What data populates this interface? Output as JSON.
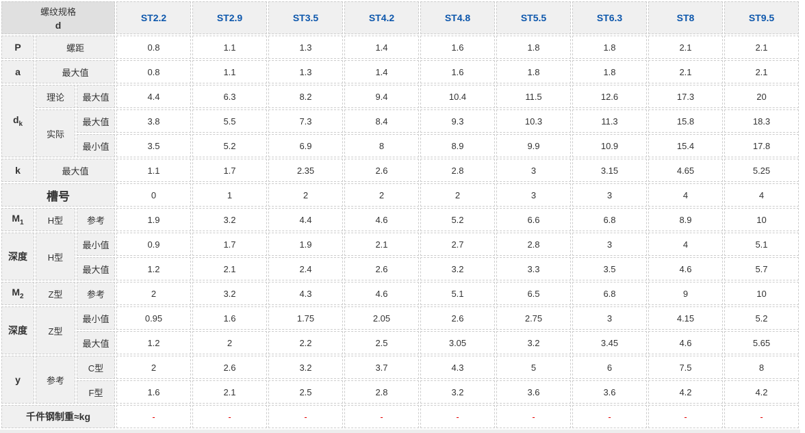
{
  "colors": {
    "header_text_blue": "#0d57ac",
    "dash_red": "#e60000",
    "label_bg": "#f0f0f0",
    "corner_bg": "#e0e0e0"
  },
  "table": {
    "corner": {
      "line1": "螺纹规格",
      "line2": "d"
    },
    "columns": [
      "ST2.2",
      "ST2.9",
      "ST3.5",
      "ST4.2",
      "ST4.8",
      "ST5.5",
      "ST6.3",
      "ST8",
      "ST9.5"
    ],
    "rows": [
      {
        "c1": {
          "base": "P"
        },
        "c2": "螺距",
        "values": [
          "0.8",
          "1.1",
          "1.3",
          "1.4",
          "1.6",
          "1.8",
          "1.8",
          "2.1",
          "2.1"
        ]
      },
      {
        "c1": {
          "base": "a"
        },
        "c2": "最大值",
        "values": [
          "0.8",
          "1.1",
          "1.3",
          "1.4",
          "1.6",
          "1.8",
          "1.8",
          "2.1",
          "2.1"
        ]
      },
      {
        "c1": {
          "base": "d",
          "sub": "k"
        },
        "c2": "理论",
        "c3": "最大值",
        "values": [
          "4.4",
          "6.3",
          "8.2",
          "9.4",
          "10.4",
          "11.5",
          "12.6",
          "17.3",
          "20"
        ]
      },
      {
        "c2": "实际",
        "c3": "最大值",
        "values": [
          "3.8",
          "5.5",
          "7.3",
          "8.4",
          "9.3",
          "10.3",
          "11.3",
          "15.8",
          "18.3"
        ]
      },
      {
        "c3": "最小值",
        "values": [
          "3.5",
          "5.2",
          "6.9",
          "8",
          "8.9",
          "9.9",
          "10.9",
          "15.4",
          "17.8"
        ]
      },
      {
        "c1": {
          "base": "k"
        },
        "c2": "最大值",
        "values": [
          "1.1",
          "1.7",
          "2.35",
          "2.6",
          "2.8",
          "3",
          "3.15",
          "4.65",
          "5.25"
        ]
      },
      {
        "c1": {
          "base": "槽号"
        },
        "values": [
          "0",
          "1",
          "2",
          "2",
          "2",
          "3",
          "3",
          "4",
          "4"
        ]
      },
      {
        "c1": {
          "base": "M",
          "sub": "1"
        },
        "c2": "H型",
        "c3": "参考",
        "values": [
          "1.9",
          "3.2",
          "4.4",
          "4.6",
          "5.2",
          "6.6",
          "6.8",
          "8.9",
          "10"
        ]
      },
      {
        "c1": {
          "base": "深度"
        },
        "c2": "H型",
        "c3": "最小值",
        "values": [
          "0.9",
          "1.7",
          "1.9",
          "2.1",
          "2.7",
          "2.8",
          "3",
          "4",
          "5.1"
        ]
      },
      {
        "c3": "最大值",
        "values": [
          "1.2",
          "2.1",
          "2.4",
          "2.6",
          "3.2",
          "3.3",
          "3.5",
          "4.6",
          "5.7"
        ]
      },
      {
        "c1": {
          "base": "M",
          "sub": "2"
        },
        "c2": "Z型",
        "c3": "参考",
        "values": [
          "2",
          "3.2",
          "4.3",
          "4.6",
          "5.1",
          "6.5",
          "6.8",
          "9",
          "10"
        ]
      },
      {
        "c1": {
          "base": "深度"
        },
        "c2": "Z型",
        "c3": "最小值",
        "values": [
          "0.95",
          "1.6",
          "1.75",
          "2.05",
          "2.6",
          "2.75",
          "3",
          "4.15",
          "5.2"
        ]
      },
      {
        "c3": "最大值",
        "values": [
          "1.2",
          "2",
          "2.2",
          "2.5",
          "3.05",
          "3.2",
          "3.45",
          "4.6",
          "5.65"
        ]
      },
      {
        "c1": {
          "base": "y"
        },
        "c2": "参考",
        "c3": "C型",
        "values": [
          "2",
          "2.6",
          "3.2",
          "3.7",
          "4.3",
          "5",
          "6",
          "7.5",
          "8"
        ]
      },
      {
        "c3": "F型",
        "values": [
          "1.6",
          "2.1",
          "2.5",
          "2.8",
          "3.2",
          "3.6",
          "3.6",
          "4.2",
          "4.2"
        ]
      },
      {
        "c1": {
          "base": "千件钢制重≈kg"
        },
        "values": [
          "-",
          "-",
          "-",
          "-",
          "-",
          "-",
          "-",
          "-",
          "-"
        ],
        "value_color": "red"
      }
    ]
  }
}
